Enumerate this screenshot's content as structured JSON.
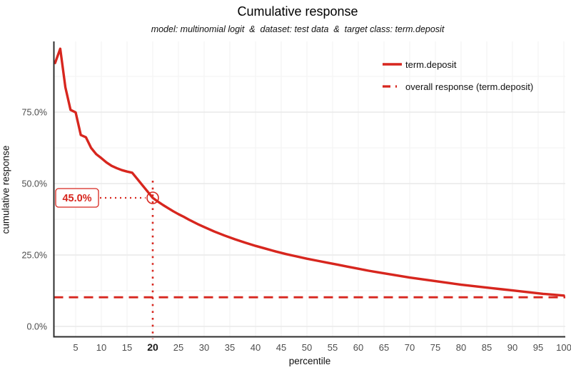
{
  "chart_data": {
    "type": "line",
    "title": "Cumulative response",
    "subtitle": "model: multinomial logit  &  dataset: test data  &  target class: term.deposit",
    "xlabel": "percentile",
    "ylabel": "cumulative response",
    "xlim": [
      1,
      100
    ],
    "ylim": [
      0,
      100
    ],
    "grid": true,
    "x_ticks": [
      5,
      10,
      15,
      20,
      25,
      30,
      35,
      40,
      45,
      50,
      55,
      60,
      65,
      70,
      75,
      80,
      85,
      90,
      95,
      100
    ],
    "highlighted_x_tick": 20,
    "y_ticks": [
      {
        "value": 0,
        "label": "0.0%"
      },
      {
        "value": 25,
        "label": "25.0%"
      },
      {
        "value": 50,
        "label": "50.0%"
      },
      {
        "value": 75,
        "label": "75.0%"
      }
    ],
    "y_minor_gridlines": [
      12.5,
      37.5,
      62.5,
      87.5
    ],
    "series": [
      {
        "name": "term.deposit",
        "line_style": "solid",
        "points": [
          [
            1,
            92.2
          ],
          [
            2,
            97.2
          ],
          [
            3,
            83.7
          ],
          [
            4,
            75.8
          ],
          [
            5,
            74.9
          ],
          [
            6,
            67.0
          ],
          [
            7,
            66.2
          ],
          [
            8,
            62.5
          ],
          [
            9,
            60.3
          ],
          [
            10,
            58.9
          ],
          [
            11,
            57.4
          ],
          [
            12,
            56.2
          ],
          [
            13,
            55.4
          ],
          [
            14,
            54.7
          ],
          [
            15,
            54.2
          ],
          [
            16,
            53.8
          ],
          [
            17,
            51.6
          ],
          [
            18,
            49.4
          ],
          [
            19,
            47.2
          ],
          [
            20,
            45.0
          ],
          [
            21,
            43.7
          ],
          [
            22,
            42.5
          ],
          [
            23,
            41.4
          ],
          [
            24,
            40.3
          ],
          [
            25,
            39.3
          ],
          [
            26,
            38.4
          ],
          [
            27,
            37.4
          ],
          [
            28,
            36.5
          ],
          [
            29,
            35.6
          ],
          [
            30,
            34.8
          ],
          [
            32,
            33.2
          ],
          [
            34,
            31.8
          ],
          [
            36,
            30.5
          ],
          [
            38,
            29.3
          ],
          [
            40,
            28.2
          ],
          [
            42,
            27.2
          ],
          [
            44,
            26.2
          ],
          [
            46,
            25.3
          ],
          [
            48,
            24.5
          ],
          [
            50,
            23.7
          ],
          [
            52,
            23.0
          ],
          [
            54,
            22.3
          ],
          [
            56,
            21.6
          ],
          [
            58,
            20.9
          ],
          [
            60,
            20.2
          ],
          [
            62,
            19.5
          ],
          [
            64,
            18.9
          ],
          [
            66,
            18.3
          ],
          [
            68,
            17.7
          ],
          [
            70,
            17.1
          ],
          [
            72,
            16.6
          ],
          [
            74,
            16.1
          ],
          [
            76,
            15.6
          ],
          [
            78,
            15.1
          ],
          [
            80,
            14.6
          ],
          [
            82,
            14.2
          ],
          [
            84,
            13.8
          ],
          [
            86,
            13.4
          ],
          [
            88,
            13.0
          ],
          [
            90,
            12.6
          ],
          [
            92,
            12.2
          ],
          [
            94,
            11.8
          ],
          [
            96,
            11.4
          ],
          [
            98,
            11.1
          ],
          [
            100,
            10.8
          ]
        ]
      }
    ],
    "reference_line": {
      "name": "overall response (term.deposit)",
      "value": 10.2,
      "line_style": "dashed"
    },
    "annotation": {
      "label": "45.0%",
      "percentile": 20,
      "value": 45.0
    },
    "legend": {
      "position": "top-right",
      "entries": [
        {
          "label": "term.deposit",
          "line": "solid"
        },
        {
          "label": "overall response (term.deposit)",
          "line": "dashed"
        }
      ]
    },
    "colors": {
      "line": "#d7261e",
      "axis_text": "#4d4d4d",
      "highlight_text": "#1a1a1a",
      "axis_line": "#2e2e2e",
      "grid_major": "#e9e9e9",
      "grid_minor": "#f4f4f4",
      "annotation_bg": "#ffffff"
    }
  }
}
